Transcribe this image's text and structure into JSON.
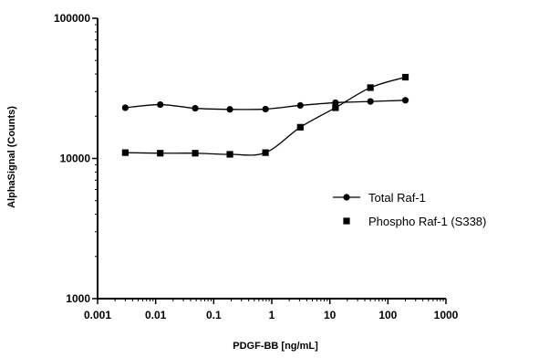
{
  "chart_data": {
    "type": "scatter",
    "title": "",
    "xlabel": "PDGF-BB [ng/mL]",
    "ylabel": "AlphaSignal (Counts)",
    "x_scale": "log",
    "y_scale": "log",
    "xlim": [
      0.001,
      1000
    ],
    "ylim": [
      1000,
      100000
    ],
    "x_ticks": [
      0.001,
      0.01,
      0.1,
      1,
      10,
      100,
      1000
    ],
    "x_tick_labels": [
      "0.001",
      "0.01",
      "0.1",
      "1",
      "10",
      "100",
      "1000"
    ],
    "y_ticks": [
      1000,
      10000,
      100000
    ],
    "y_tick_labels": [
      "1000",
      "10000",
      "100000"
    ],
    "grid": false,
    "legend_position": "right",
    "x": [
      0.003,
      0.012,
      0.048,
      0.19,
      0.78,
      3.1,
      12.5,
      50,
      200
    ],
    "series": [
      {
        "name": "Total Raf-1",
        "marker": "circle",
        "color": "#000000",
        "values": [
          23000,
          24200,
          22800,
          22400,
          22500,
          23900,
          25000,
          25500,
          26000
        ],
        "fit_line": true
      },
      {
        "name": "Phospho Raf-1 (S338)",
        "marker": "square",
        "color": "#000000",
        "values": [
          11000,
          10900,
          10900,
          10700,
          11000,
          16700,
          23000,
          32000,
          38000
        ],
        "fit_line": true
      }
    ]
  }
}
